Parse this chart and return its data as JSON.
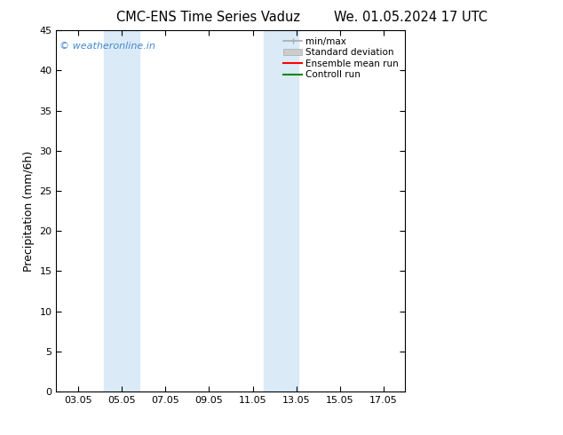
{
  "title_left": "CMC-ENS Time Series Vaduz",
  "title_right": "We. 01.05.2024 17 UTC",
  "ylabel": "Precipitation (mm/6h)",
  "ylim": [
    0,
    45
  ],
  "yticks": [
    0,
    5,
    10,
    15,
    20,
    25,
    30,
    35,
    40,
    45
  ],
  "xtick_labels": [
    "03.05",
    "05.05",
    "07.05",
    "09.05",
    "11.05",
    "13.05",
    "15.05",
    "17.05"
  ],
  "xtick_positions": [
    3,
    5,
    7,
    9,
    11,
    13,
    15,
    17
  ],
  "xlim": [
    2,
    18
  ],
  "shade_bands": [
    {
      "xmin": 4.2,
      "xmax": 5.8
    },
    {
      "xmin": 11.5,
      "xmax": 13.1
    }
  ],
  "shade_color": "#daeaf7",
  "background_color": "#ffffff",
  "watermark_text": "© weatheronline.in",
  "watermark_color": "#4488cc",
  "legend_items": [
    {
      "label": "min/max",
      "color": "#aaaaaa",
      "type": "line"
    },
    {
      "label": "Standard deviation",
      "color": "#cccccc",
      "type": "bar"
    },
    {
      "label": "Ensemble mean run",
      "color": "#ff0000",
      "type": "line"
    },
    {
      "label": "Controll run",
      "color": "#008800",
      "type": "line"
    }
  ],
  "title_fontsize": 10.5,
  "ylabel_fontsize": 9,
  "tick_fontsize": 8,
  "legend_fontsize": 7.5,
  "watermark_fontsize": 8
}
